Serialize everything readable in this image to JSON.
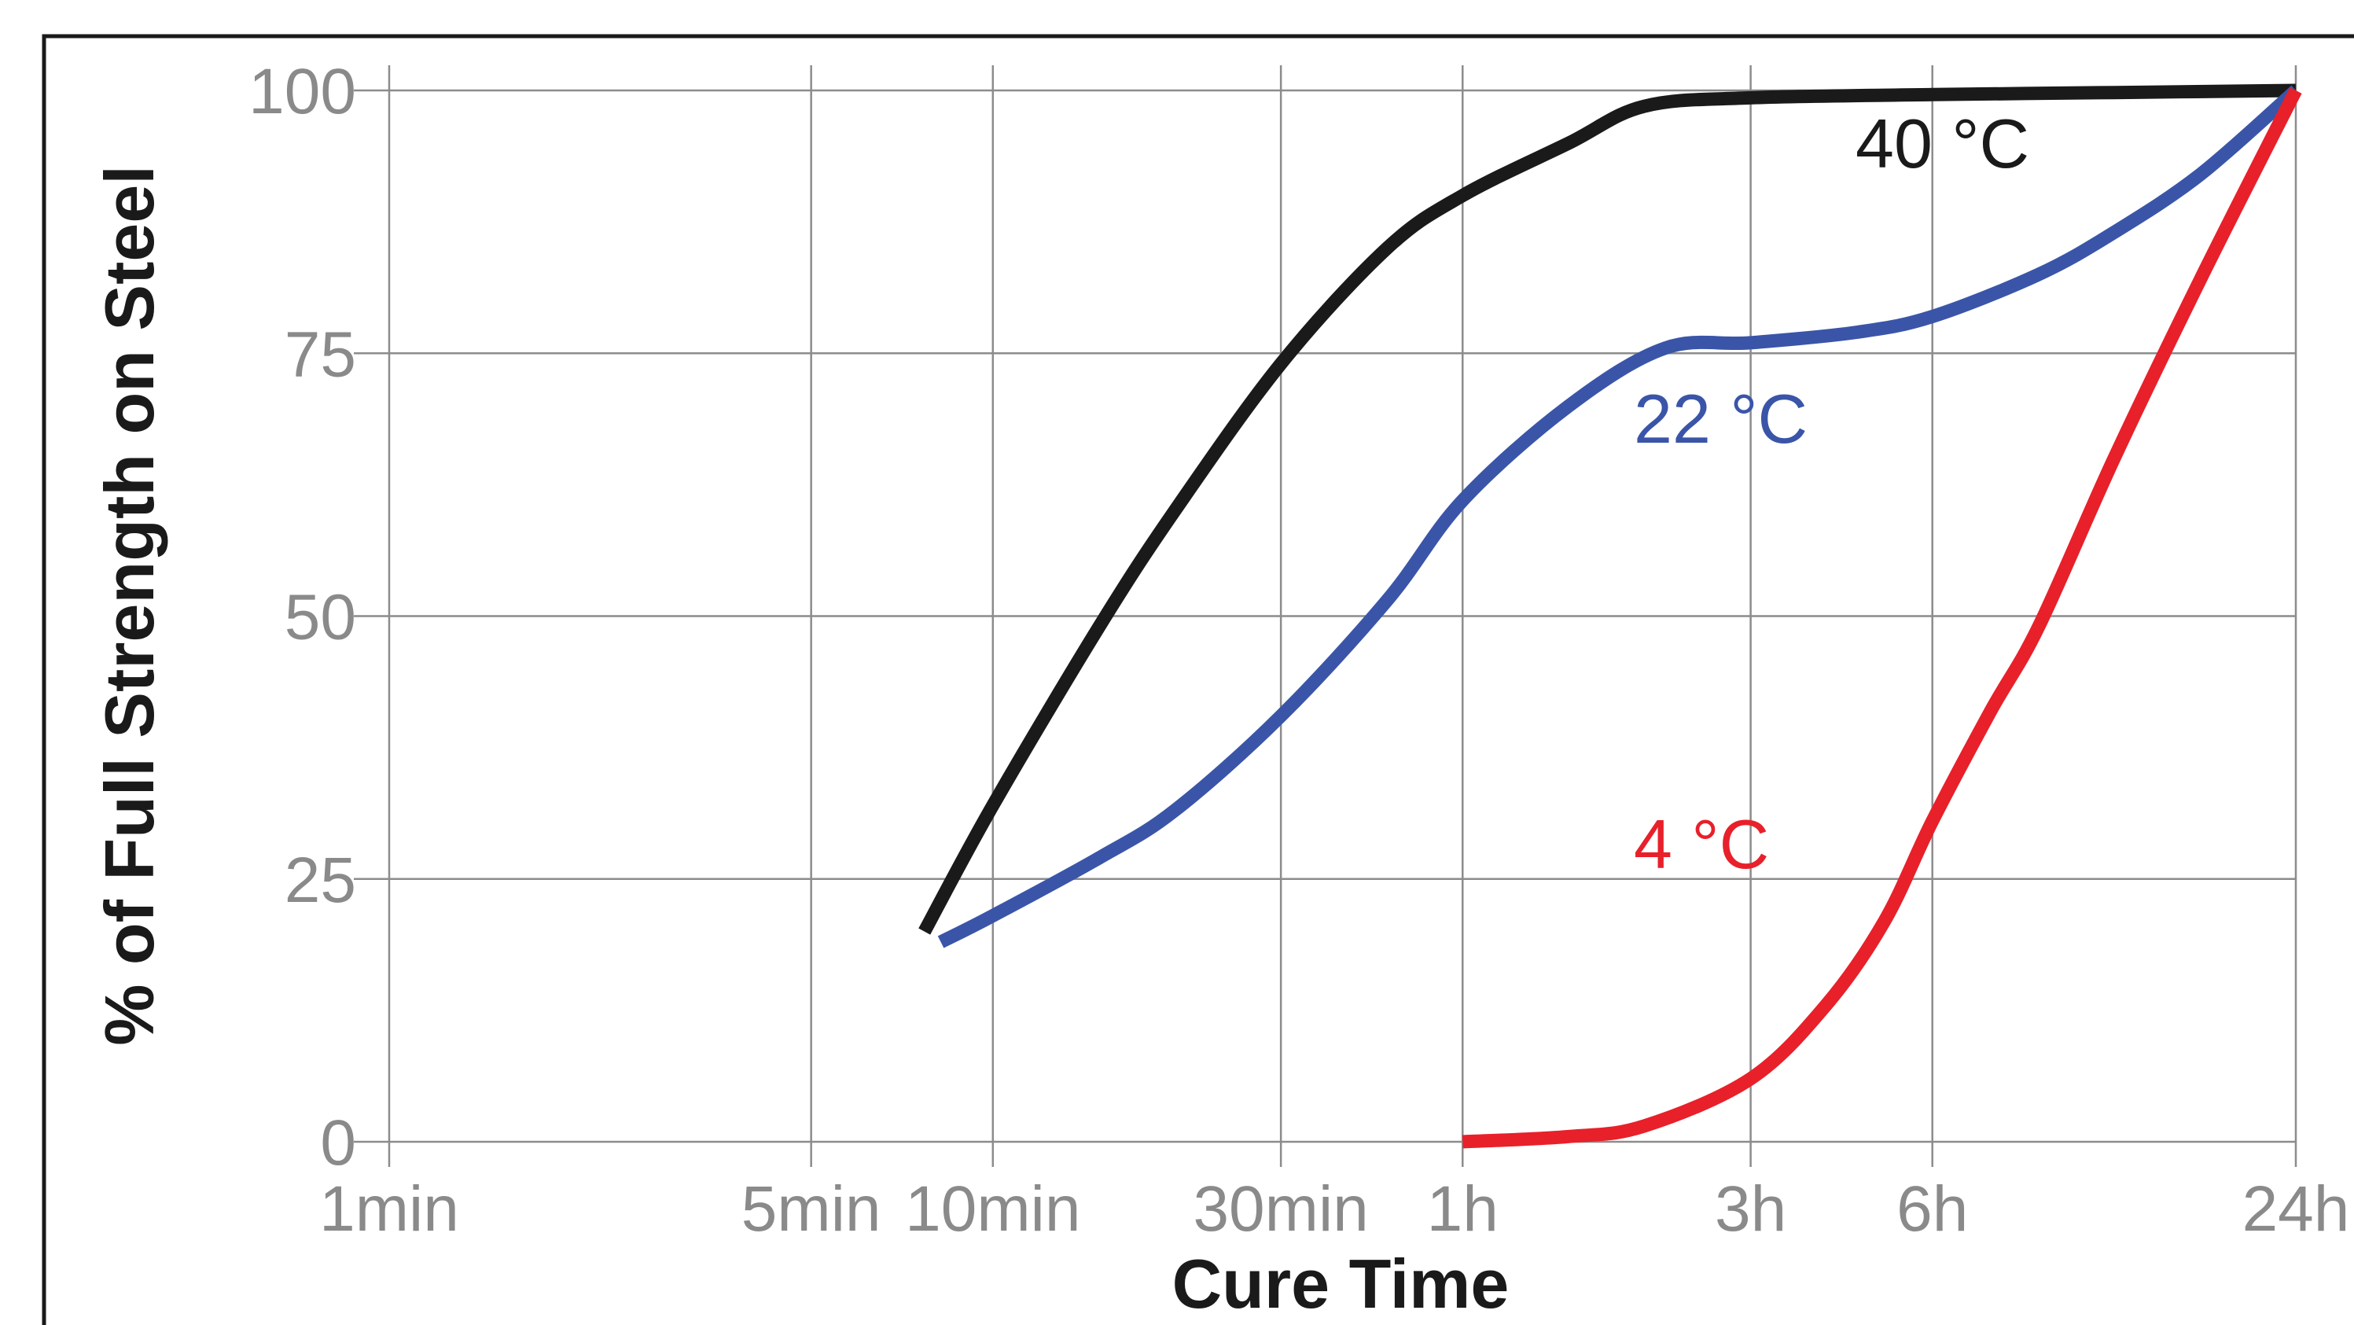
{
  "chart_data": {
    "type": "line",
    "xlabel": "Cure Time",
    "ylabel": "% of Full Strength on Steel",
    "x_scale": "log",
    "x_unit": "minutes",
    "x_ticks": [
      {
        "value": 1,
        "label": "1min"
      },
      {
        "value": 5,
        "label": "5min"
      },
      {
        "value": 10,
        "label": "10min"
      },
      {
        "value": 30,
        "label": "30min"
      },
      {
        "value": 60,
        "label": "1h"
      },
      {
        "value": 180,
        "label": "3h"
      },
      {
        "value": 360,
        "label": "6h"
      },
      {
        "value": 1440,
        "label": "24h"
      }
    ],
    "y_ticks": [
      0,
      25,
      50,
      75,
      100
    ],
    "ylim": [
      0,
      100
    ],
    "grid": true,
    "series": [
      {
        "name": "40 °C",
        "color": "#1a1a1a",
        "x": [
          7.7,
          10,
          15,
          20,
          30,
          45,
          60,
          90,
          120,
          180,
          360,
          720,
          1440
        ],
        "y": [
          20,
          32,
          49,
          60,
          74,
          85,
          90,
          95,
          98.5,
          99.3,
          99.6,
          99.8,
          100
        ]
      },
      {
        "name": "22 °C",
        "color": "#3a55a8",
        "x": [
          8.2,
          10,
          15,
          20,
          30,
          45,
          60,
          90,
          130,
          180,
          270,
          360,
          540,
          720,
          1000,
          1440
        ],
        "y": [
          19,
          21.5,
          27,
          31.5,
          40.5,
          51.5,
          61,
          70,
          75.5,
          76,
          77,
          78.5,
          82.5,
          86.5,
          92,
          100
        ]
      },
      {
        "name": "4 °C",
        "color": "#e8202a",
        "x": [
          60,
          90,
          120,
          180,
          240,
          300,
          360,
          450,
          540,
          720,
          1000,
          1440
        ],
        "y": [
          0,
          0.5,
          1.5,
          6,
          13,
          21,
          30.5,
          41,
          49,
          65,
          82,
          100
        ]
      }
    ],
    "annotations": [
      "40 °C",
      "22 °C",
      "4 °C"
    ]
  }
}
